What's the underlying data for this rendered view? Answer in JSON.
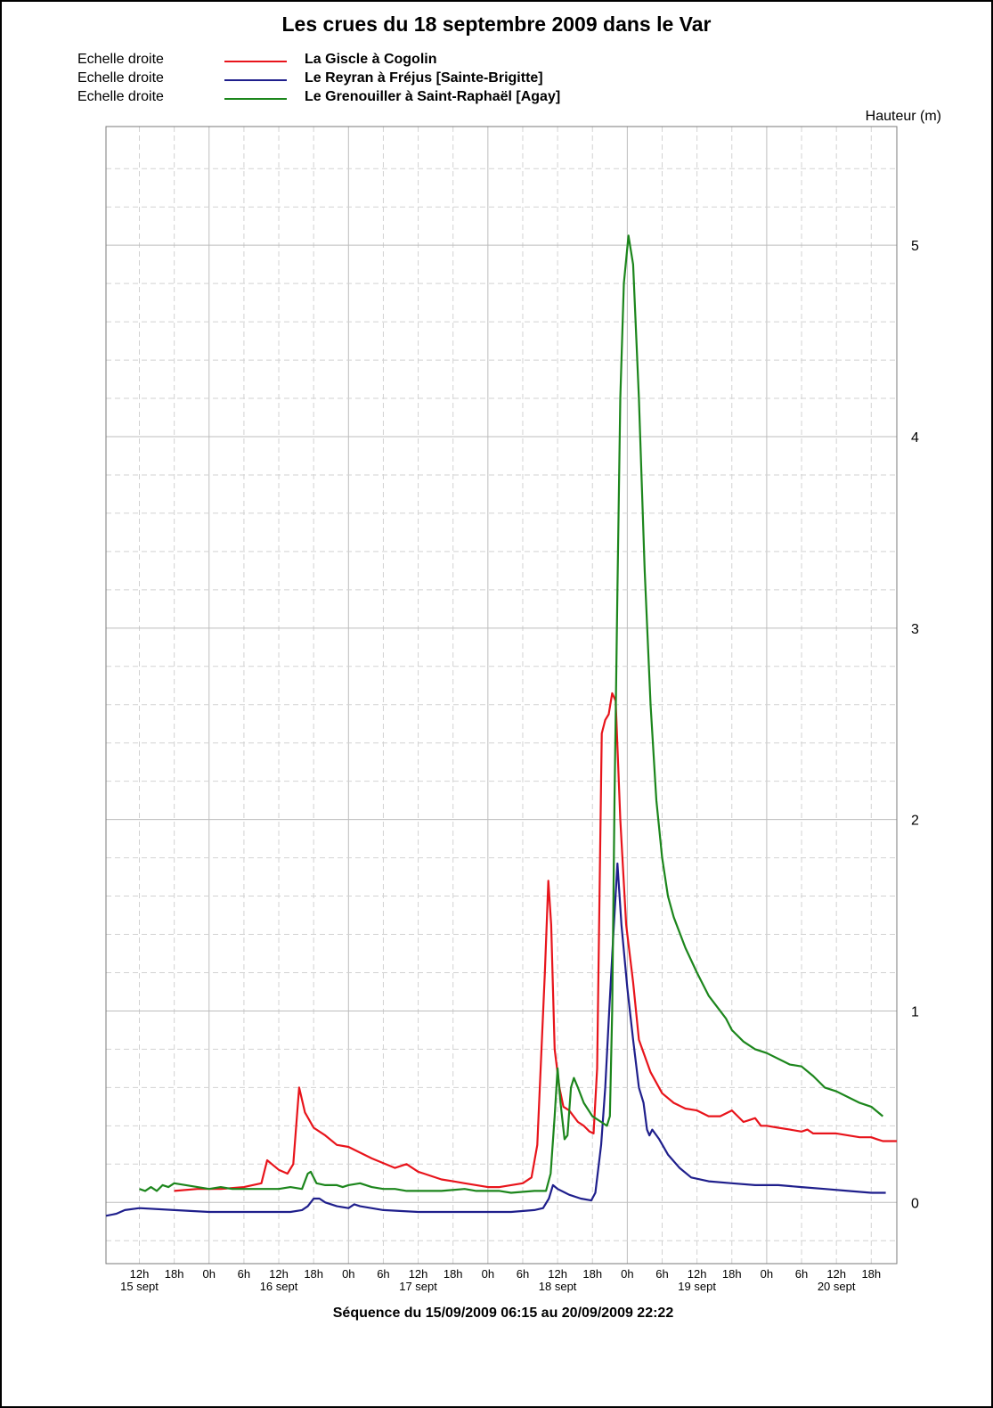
{
  "chart_data": {
    "type": "line",
    "title": "Les crues du 18 septembre 2009 dans le Var",
    "ylabel": "Hauteur (m)",
    "xlabel": "Séquence du  15/09/2009 06:15  au  20/09/2009 22:22",
    "x_unit": "hours since 15/09/2009 00:00",
    "xlim": [
      6.25,
      142.4
    ],
    "ylim": [
      -0.32,
      5.62
    ],
    "y_ticks": [
      0,
      1,
      2,
      3,
      4,
      5
    ],
    "x_ticks": [
      {
        "x": 12,
        "label": "12h"
      },
      {
        "x": 18,
        "label": "18h"
      },
      {
        "x": 24,
        "label": "0h"
      },
      {
        "x": 30,
        "label": "6h"
      },
      {
        "x": 36,
        "label": "12h"
      },
      {
        "x": 42,
        "label": "18h"
      },
      {
        "x": 48,
        "label": "0h"
      },
      {
        "x": 54,
        "label": "6h"
      },
      {
        "x": 60,
        "label": "12h"
      },
      {
        "x": 66,
        "label": "18h"
      },
      {
        "x": 72,
        "label": "0h"
      },
      {
        "x": 78,
        "label": "6h"
      },
      {
        "x": 84,
        "label": "12h"
      },
      {
        "x": 90,
        "label": "18h"
      },
      {
        "x": 96,
        "label": "0h"
      },
      {
        "x": 102,
        "label": "6h"
      },
      {
        "x": 108,
        "label": "12h"
      },
      {
        "x": 114,
        "label": "18h"
      },
      {
        "x": 120,
        "label": "0h"
      },
      {
        "x": 126,
        "label": "6h"
      },
      {
        "x": 132,
        "label": "12h"
      },
      {
        "x": 138,
        "label": "18h"
      }
    ],
    "day_labels": [
      {
        "x": 12,
        "label": "15 sept"
      },
      {
        "x": 36,
        "label": "16 sept"
      },
      {
        "x": 60,
        "label": "17 sept"
      },
      {
        "x": 84,
        "label": "18 sept"
      },
      {
        "x": 108,
        "label": "19 sept"
      },
      {
        "x": 132,
        "label": "20 sept"
      }
    ],
    "grid": true,
    "legend_position": "top-left",
    "series": [
      {
        "name": "La Giscle à Cogolin",
        "scale": "Echelle droite",
        "color": "#e8141b",
        "points": [
          [
            18,
            0.06
          ],
          [
            22,
            0.07
          ],
          [
            26,
            0.07
          ],
          [
            30,
            0.08
          ],
          [
            33,
            0.1
          ],
          [
            34,
            0.22
          ],
          [
            36,
            0.17
          ],
          [
            37.5,
            0.15
          ],
          [
            38.5,
            0.2
          ],
          [
            39.5,
            0.6
          ],
          [
            40.5,
            0.47
          ],
          [
            42,
            0.39
          ],
          [
            44,
            0.35
          ],
          [
            46,
            0.3
          ],
          [
            48,
            0.29
          ],
          [
            52,
            0.23
          ],
          [
            56,
            0.18
          ],
          [
            58,
            0.2
          ],
          [
            60,
            0.16
          ],
          [
            61,
            0.15
          ],
          [
            64,
            0.12
          ],
          [
            66,
            0.11
          ],
          [
            68,
            0.1
          ],
          [
            70,
            0.09
          ],
          [
            72,
            0.08
          ],
          [
            74,
            0.08
          ],
          [
            76,
            0.09
          ],
          [
            78,
            0.1
          ],
          [
            79.5,
            0.13
          ],
          [
            80.5,
            0.3
          ],
          [
            81.8,
            1.2
          ],
          [
            82.4,
            1.68
          ],
          [
            82.9,
            1.45
          ],
          [
            83.5,
            0.8
          ],
          [
            84.3,
            0.6
          ],
          [
            85,
            0.5
          ],
          [
            86,
            0.48
          ],
          [
            87.5,
            0.42
          ],
          [
            88.5,
            0.4
          ],
          [
            89.5,
            0.37
          ],
          [
            90.2,
            0.36
          ],
          [
            90.8,
            0.7
          ],
          [
            91.6,
            2.45
          ],
          [
            92.2,
            2.52
          ],
          [
            92.8,
            2.55
          ],
          [
            93.4,
            2.66
          ],
          [
            94,
            2.62
          ],
          [
            94.8,
            2.0
          ],
          [
            95.8,
            1.45
          ],
          [
            97,
            1.15
          ],
          [
            98,
            0.85
          ],
          [
            100,
            0.68
          ],
          [
            102,
            0.57
          ],
          [
            104,
            0.52
          ],
          [
            106,
            0.49
          ],
          [
            108,
            0.48
          ],
          [
            110,
            0.45
          ],
          [
            112,
            0.45
          ],
          [
            114,
            0.48
          ],
          [
            116,
            0.42
          ],
          [
            117,
            0.43
          ],
          [
            118,
            0.44
          ],
          [
            119,
            0.4
          ],
          [
            120,
            0.4
          ],
          [
            122,
            0.39
          ],
          [
            124,
            0.38
          ],
          [
            126,
            0.37
          ],
          [
            127,
            0.38
          ],
          [
            128,
            0.36
          ],
          [
            130,
            0.36
          ],
          [
            132,
            0.36
          ],
          [
            134,
            0.35
          ],
          [
            136,
            0.34
          ],
          [
            138,
            0.34
          ],
          [
            139,
            0.33
          ],
          [
            140,
            0.32
          ],
          [
            142.4,
            0.32
          ]
        ]
      },
      {
        "name": "Le Reyran à Fréjus [Sainte-Brigitte]",
        "scale": "Echelle droite",
        "color": "#1f1f8c",
        "points": [
          [
            6.25,
            -0.07
          ],
          [
            8,
            -0.06
          ],
          [
            9.5,
            -0.04
          ],
          [
            12,
            -0.03
          ],
          [
            18,
            -0.04
          ],
          [
            24,
            -0.05
          ],
          [
            30,
            -0.05
          ],
          [
            36,
            -0.05
          ],
          [
            38,
            -0.05
          ],
          [
            40,
            -0.04
          ],
          [
            41,
            -0.02
          ],
          [
            42,
            0.02
          ],
          [
            43,
            0.02
          ],
          [
            44,
            0.0
          ],
          [
            46,
            -0.02
          ],
          [
            48,
            -0.03
          ],
          [
            49,
            -0.01
          ],
          [
            50,
            -0.02
          ],
          [
            54,
            -0.04
          ],
          [
            60,
            -0.05
          ],
          [
            66,
            -0.05
          ],
          [
            72,
            -0.05
          ],
          [
            76,
            -0.05
          ],
          [
            80,
            -0.04
          ],
          [
            81.5,
            -0.03
          ],
          [
            82.5,
            0.02
          ],
          [
            83.2,
            0.09
          ],
          [
            84,
            0.07
          ],
          [
            86,
            0.04
          ],
          [
            88,
            0.02
          ],
          [
            89.8,
            0.01
          ],
          [
            90.5,
            0.05
          ],
          [
            91.5,
            0.3
          ],
          [
            92.2,
            0.6
          ],
          [
            92.8,
            0.95
          ],
          [
            93.6,
            1.4
          ],
          [
            94.3,
            1.77
          ],
          [
            95,
            1.45
          ],
          [
            96,
            1.12
          ],
          [
            97,
            0.85
          ],
          [
            98,
            0.6
          ],
          [
            98.8,
            0.52
          ],
          [
            99.4,
            0.38
          ],
          [
            99.8,
            0.35
          ],
          [
            100.3,
            0.38
          ],
          [
            101.5,
            0.33
          ],
          [
            103,
            0.25
          ],
          [
            105,
            0.18
          ],
          [
            107,
            0.13
          ],
          [
            110,
            0.11
          ],
          [
            114,
            0.1
          ],
          [
            118,
            0.09
          ],
          [
            122,
            0.09
          ],
          [
            126,
            0.08
          ],
          [
            130,
            0.07
          ],
          [
            134,
            0.06
          ],
          [
            138,
            0.05
          ],
          [
            140.5,
            0.05
          ]
        ]
      },
      {
        "name": "Le Grenouiller à Saint-Raphaël [Agay]",
        "scale": "Echelle droite",
        "color": "#1c861c",
        "points": [
          [
            12,
            0.07
          ],
          [
            13,
            0.06
          ],
          [
            14,
            0.08
          ],
          [
            15,
            0.06
          ],
          [
            16,
            0.09
          ],
          [
            17,
            0.08
          ],
          [
            18,
            0.1
          ],
          [
            20,
            0.09
          ],
          [
            22,
            0.08
          ],
          [
            24,
            0.07
          ],
          [
            26,
            0.08
          ],
          [
            28,
            0.07
          ],
          [
            30,
            0.07
          ],
          [
            33,
            0.07
          ],
          [
            36,
            0.07
          ],
          [
            38,
            0.08
          ],
          [
            40,
            0.07
          ],
          [
            41,
            0.15
          ],
          [
            41.5,
            0.16
          ],
          [
            42.5,
            0.1
          ],
          [
            44,
            0.09
          ],
          [
            46,
            0.09
          ],
          [
            47,
            0.08
          ],
          [
            48,
            0.09
          ],
          [
            50,
            0.1
          ],
          [
            52,
            0.08
          ],
          [
            54,
            0.07
          ],
          [
            56,
            0.07
          ],
          [
            58,
            0.06
          ],
          [
            60,
            0.06
          ],
          [
            64,
            0.06
          ],
          [
            68,
            0.07
          ],
          [
            70,
            0.06
          ],
          [
            72,
            0.06
          ],
          [
            74,
            0.06
          ],
          [
            76,
            0.05
          ],
          [
            80,
            0.06
          ],
          [
            82,
            0.06
          ],
          [
            82.8,
            0.15
          ],
          [
            83.5,
            0.45
          ],
          [
            84,
            0.7
          ],
          [
            84.5,
            0.52
          ],
          [
            85.2,
            0.33
          ],
          [
            85.7,
            0.35
          ],
          [
            86.3,
            0.6
          ],
          [
            86.8,
            0.65
          ],
          [
            87.5,
            0.6
          ],
          [
            88.5,
            0.52
          ],
          [
            90,
            0.45
          ],
          [
            91.5,
            0.42
          ],
          [
            92.5,
            0.4
          ],
          [
            93,
            0.45
          ],
          [
            93.4,
            1.0
          ],
          [
            93.8,
            2.1
          ],
          [
            94.3,
            3.2
          ],
          [
            94.8,
            4.2
          ],
          [
            95.4,
            4.8
          ],
          [
            96.2,
            5.05
          ],
          [
            97,
            4.9
          ],
          [
            98,
            4.2
          ],
          [
            99,
            3.3
          ],
          [
            100,
            2.6
          ],
          [
            101,
            2.1
          ],
          [
            102,
            1.8
          ],
          [
            103,
            1.6
          ],
          [
            104,
            1.49
          ],
          [
            106,
            1.33
          ],
          [
            108,
            1.2
          ],
          [
            110,
            1.08
          ],
          [
            112,
            1.0
          ],
          [
            113,
            0.96
          ],
          [
            114,
            0.9
          ],
          [
            116,
            0.84
          ],
          [
            118,
            0.8
          ],
          [
            120,
            0.78
          ],
          [
            124,
            0.72
          ],
          [
            126,
            0.71
          ],
          [
            128,
            0.66
          ],
          [
            130,
            0.6
          ],
          [
            132,
            0.58
          ],
          [
            134,
            0.55
          ],
          [
            136,
            0.52
          ],
          [
            138,
            0.5
          ],
          [
            140,
            0.45
          ]
        ]
      }
    ]
  }
}
